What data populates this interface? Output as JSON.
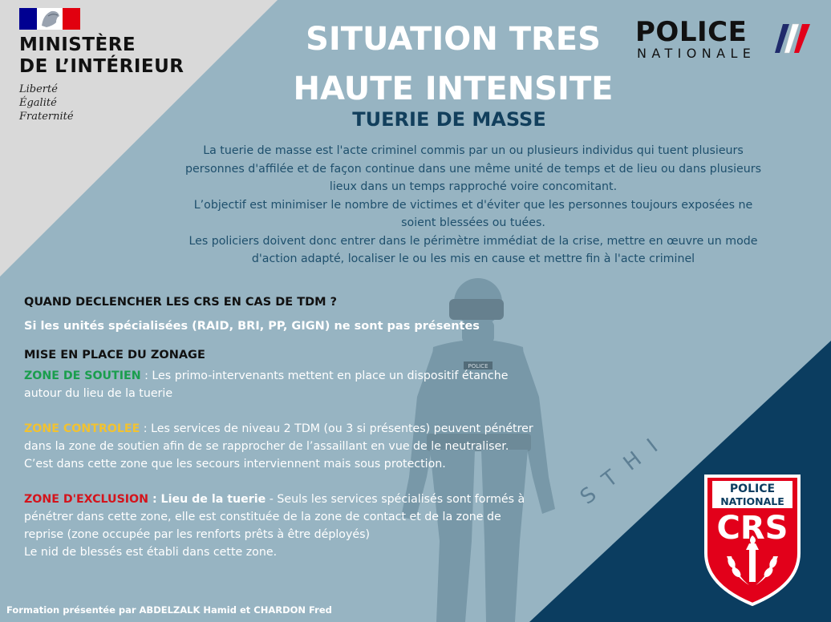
{
  "ministere": {
    "line1": "MINISTÈRE",
    "line2": "DE L’INTÉRIEUR",
    "motto": [
      "Liberté",
      "Égalité",
      "Fraternité"
    ]
  },
  "title": {
    "line1": "SITUATION TRES",
    "line2": "HAUTE INTENSITE",
    "subtitle": "TUERIE DE MASSE"
  },
  "police_logo": {
    "word1": "POLICE",
    "word2": "NATIONALE"
  },
  "intro": [
    "La tuerie de masse est l'acte criminel commis par un ou plusieurs individus qui tuent plusieurs",
    "personnes d'affilée et de façon continue dans une même unité de temps et de lieu ou dans plusieurs",
    "lieux dans un temps rapproché voire concomitant.",
    "L’objectif est minimiser le nombre de victimes et d'éviter que les personnes toujours exposées ne",
    "soient blessées ou tuées.",
    "Les policiers doivent donc entrer dans le périmètre immédiat de la crise, mettre en œuvre un mode",
    "d'action adapté, localiser le ou les mis en cause et mettre fin à l'acte criminel"
  ],
  "question": {
    "title": "QUAND DECLENCHER LES CRS EN CAS DE TDM ?",
    "answer": "Si les unités spécialisées (RAID, BRI, PP, GIGN) ne sont pas présentes"
  },
  "zonage": {
    "title": "MISE EN PLACE DU ZONAGE",
    "soutien": {
      "label": "ZONE DE SOUTIEN",
      "sep": " : ",
      "text": "Les primo-intervenants mettent en place un dispositif étanche autour du lieu de la tuerie"
    },
    "controlee": {
      "label": "ZONE CONTROLEE",
      "sep": " : ",
      "text": "Les services de niveau 2 TDM (ou 3 si présentes) peuvent pénétrer dans la zone de soutien afin de se rapprocher de l’assaillant en vue de le neutraliser. C’est dans cette zone que les secours interviennent mais sous protection."
    },
    "exclusion": {
      "label": "ZONE D'EXCLUSION",
      "bold_text": " : Lieu de la tuerie",
      "text": " - Seuls les services spécialisés sont formés à pénétrer dans cette zone, elle est constituée de la zone de contact et de la zone de reprise (zone occupée par les renforts prêts à être déployés)",
      "text2": "Le nid de blessés est établi dans cette zone."
    }
  },
  "watermark": "STHI",
  "silhouette_badge": "POLICE",
  "crs_badge": {
    "line1": "POLICE",
    "line2": "NATIONALE",
    "line3": "CRS"
  },
  "footer": "Formation présentée par ABDELZALK Hamid et CHARDON Fred",
  "colors": {
    "background": "#97b4c2",
    "light_triangle": "#d9d9d9",
    "navy": "#0b3d60",
    "title_white": "#ffffff",
    "subtitle_navy": "#123f5c",
    "zone_soutien": "#1a9e4d",
    "zone_controlee": "#f2c230",
    "zone_exclusion": "#d4141c",
    "crs_red": "#e2001a"
  },
  "icons": [
    "marianne-flag-icon",
    "tricolor-stripes-icon",
    "crs-shield-icon",
    "officer-silhouette-icon"
  ]
}
